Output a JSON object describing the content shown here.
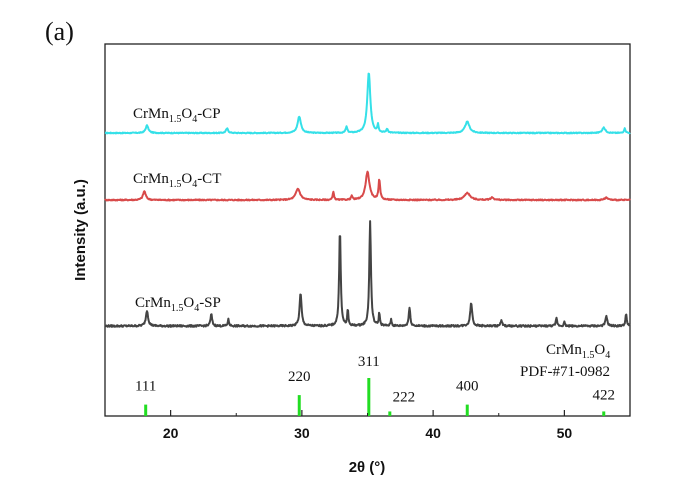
{
  "chart_data": {
    "type": "line",
    "panel_label": "(a)",
    "xlabel": "2θ (°)",
    "ylabel": "Intensity (a.u.)",
    "xlim": [
      15,
      55
    ],
    "x_ticks": [
      20,
      30,
      40,
      50
    ],
    "x_tick_labels": [
      "20",
      "30",
      "40",
      "50"
    ],
    "series": [
      {
        "name": "CrMn1.5O4-CP",
        "label_main": "CrMn",
        "label_sub1": "1.5",
        "label_mid": "O",
        "label_sub2": "4",
        "label_suffix": "-CP",
        "color": "#35e0e8",
        "baseline": 0.0,
        "noise": 0.012,
        "peaks": [
          [
            18.2,
            0.1,
            0.25
          ],
          [
            24.3,
            0.06,
            0.2
          ],
          [
            29.8,
            0.22,
            0.3
          ],
          [
            33.4,
            0.08,
            0.15
          ],
          [
            35.1,
            0.8,
            0.28
          ],
          [
            35.8,
            0.1,
            0.12
          ],
          [
            36.5,
            0.05,
            0.15
          ],
          [
            42.6,
            0.15,
            0.4
          ],
          [
            53.0,
            0.07,
            0.3
          ],
          [
            54.6,
            0.06,
            0.15
          ]
        ]
      },
      {
        "name": "CrMn1.5O4-CT",
        "label_main": "CrMn",
        "label_sub1": "1.5",
        "label_mid": "O",
        "label_sub2": "4",
        "label_suffix": "-CT",
        "color": "#d84a4a",
        "baseline": 0.0,
        "noise": 0.014,
        "peaks": [
          [
            18.0,
            0.11,
            0.25
          ],
          [
            29.7,
            0.14,
            0.4
          ],
          [
            32.4,
            0.1,
            0.12
          ],
          [
            33.8,
            0.05,
            0.12
          ],
          [
            35.0,
            0.35,
            0.35
          ],
          [
            35.9,
            0.25,
            0.15
          ],
          [
            42.6,
            0.09,
            0.5
          ],
          [
            44.5,
            0.03,
            0.3
          ],
          [
            53.2,
            0.03,
            0.3
          ]
        ]
      },
      {
        "name": "CrMn1.5O4-SP",
        "label_main": "CrMn",
        "label_sub1": "1.5",
        "label_mid": "O",
        "label_sub2": "4",
        "label_suffix": "-SP",
        "color": "#444444",
        "baseline": 0.0,
        "noise": 0.014,
        "peaks": [
          [
            18.2,
            0.12,
            0.2
          ],
          [
            23.1,
            0.09,
            0.15
          ],
          [
            24.4,
            0.05,
            0.12
          ],
          [
            29.9,
            0.25,
            0.18
          ],
          [
            32.9,
            0.75,
            0.14
          ],
          [
            33.5,
            0.12,
            0.1
          ],
          [
            35.2,
            0.8,
            0.15
          ],
          [
            35.9,
            0.1,
            0.1
          ],
          [
            36.8,
            0.05,
            0.1
          ],
          [
            38.2,
            0.14,
            0.14
          ],
          [
            42.9,
            0.18,
            0.18
          ],
          [
            45.2,
            0.04,
            0.15
          ],
          [
            49.4,
            0.06,
            0.12
          ],
          [
            50.0,
            0.03,
            0.1
          ],
          [
            53.2,
            0.08,
            0.15
          ],
          [
            54.7,
            0.09,
            0.12
          ]
        ]
      }
    ],
    "reference": {
      "name_main": "CrMn",
      "name_sub1": "1.5",
      "name_mid": "O",
      "name_sub2": "4",
      "card": "PDF-#71-0982",
      "color": "#22dd22",
      "lines": [
        {
          "x": 18.1,
          "intensity": 0.3,
          "label": "111"
        },
        {
          "x": 29.8,
          "intensity": 0.55,
          "label": "220"
        },
        {
          "x": 35.1,
          "intensity": 1.0,
          "label": "311"
        },
        {
          "x": 36.7,
          "intensity": 0.12,
          "label": "222"
        },
        {
          "x": 42.6,
          "intensity": 0.3,
          "label": "400"
        },
        {
          "x": 53.0,
          "intensity": 0.12,
          "label": "422"
        }
      ]
    }
  }
}
